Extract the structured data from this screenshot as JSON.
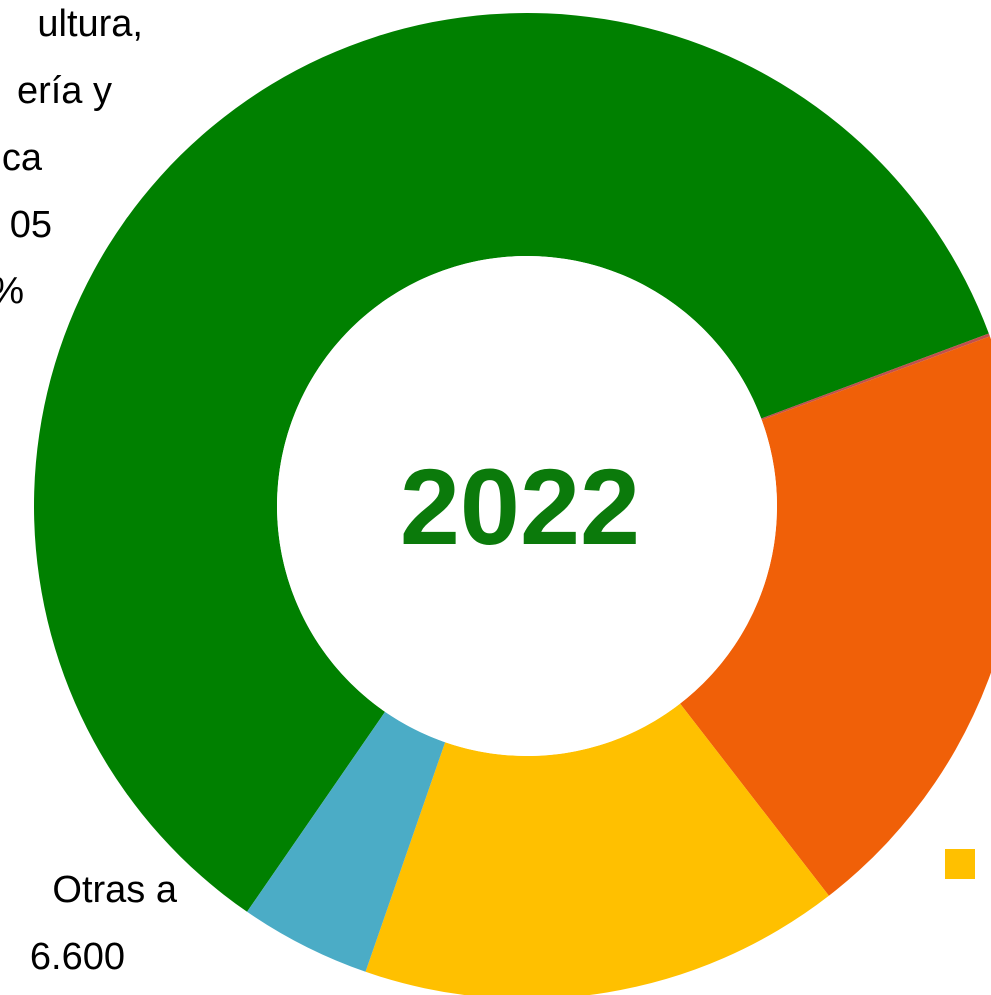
{
  "chart_data": {
    "type": "donut",
    "center_label": "2022",
    "slices": [
      {
        "name": "Agricultura, ganadería y pesca",
        "share": 0.597,
        "color": "#008000"
      },
      {
        "name": "",
        "share": 0.001,
        "color": "#C0504D"
      },
      {
        "name": "",
        "share": 0.201,
        "color": "#F06008"
      },
      {
        "name": "",
        "share": 0.158,
        "color": "#FFC000"
      },
      {
        "name": "Otras actividades",
        "share": 0.043,
        "color": "#4BACC6"
      }
    ],
    "visible_labels": {
      "top_left": [
        "ultura,",
        "ería y",
        "ca",
        "05",
        "%"
      ],
      "bottom_left": [
        "Otras a",
        "6.600"
      ]
    },
    "legend_marker_color": "#FFC000"
  }
}
